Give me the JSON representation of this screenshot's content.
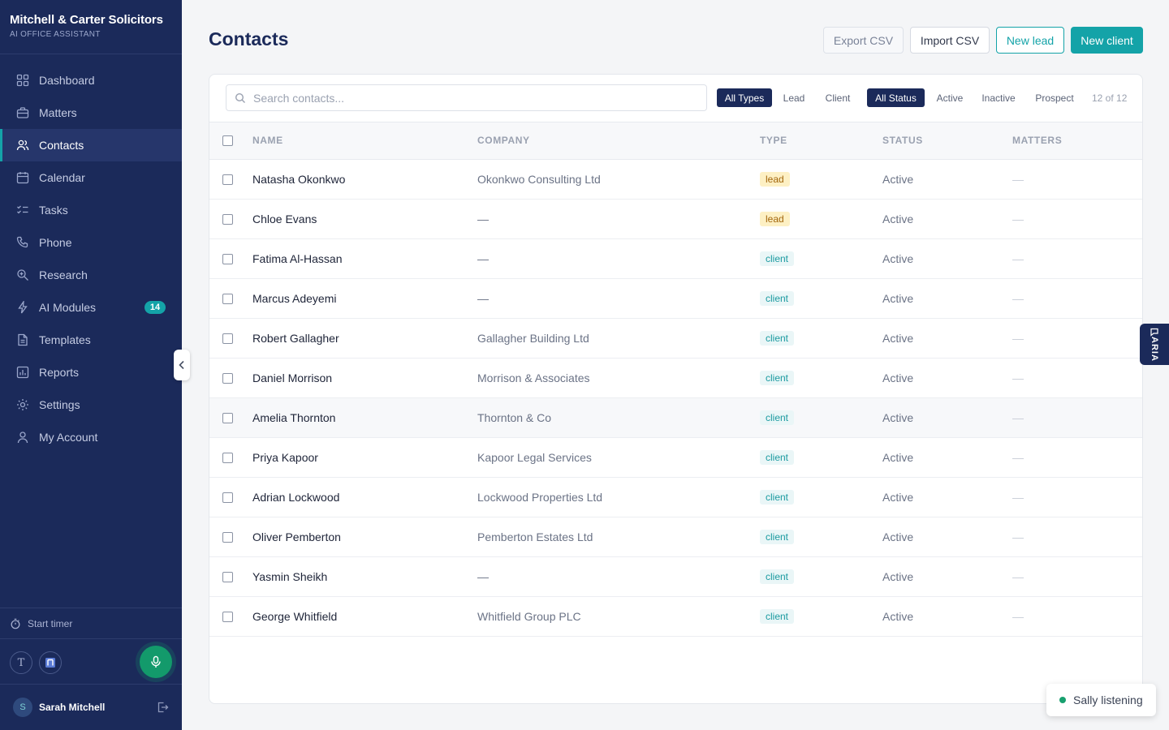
{
  "brand": {
    "name": "Mitchell & Carter Solicitors",
    "subtitle": "AI OFFICE ASSISTANT"
  },
  "sidebar": {
    "items": [
      {
        "label": "Dashboard",
        "icon": "dashboard-icon"
      },
      {
        "label": "Matters",
        "icon": "briefcase-icon"
      },
      {
        "label": "Contacts",
        "icon": "users-icon",
        "active": true
      },
      {
        "label": "Calendar",
        "icon": "calendar-icon"
      },
      {
        "label": "Tasks",
        "icon": "tasks-icon"
      },
      {
        "label": "Phone",
        "icon": "phone-icon"
      },
      {
        "label": "Research",
        "icon": "research-icon"
      },
      {
        "label": "AI Modules",
        "icon": "bolt-icon",
        "badge": "14"
      },
      {
        "label": "Templates",
        "icon": "document-icon"
      },
      {
        "label": "Reports",
        "icon": "chart-icon"
      },
      {
        "label": "Settings",
        "icon": "gear-icon"
      },
      {
        "label": "My Account",
        "icon": "user-icon"
      }
    ],
    "timer_label": "Start timer",
    "tool_t_label": "T",
    "user": {
      "initial": "S",
      "name": "Sarah Mitchell"
    }
  },
  "page": {
    "title": "Contacts"
  },
  "actions": {
    "export": "Export CSV",
    "import": "Import CSV",
    "new_lead": "New lead",
    "new_client": "New client"
  },
  "filters": {
    "search_placeholder": "Search contacts...",
    "types": [
      "All Types",
      "Lead",
      "Client"
    ],
    "statuses": [
      "All Status",
      "Active",
      "Inactive",
      "Prospect"
    ],
    "selected_type": "All Types",
    "selected_status": "All Status",
    "count": "12 of 12"
  },
  "table": {
    "headers": {
      "name": "NAME",
      "company": "COMPANY",
      "type": "TYPE",
      "status": "STATUS",
      "matters": "MATTERS"
    },
    "rows": [
      {
        "name": "Natasha Okonkwo",
        "company": "Okonkwo Consulting Ltd",
        "type": "lead",
        "status": "Active",
        "matters": "—"
      },
      {
        "name": "Chloe Evans",
        "company": "—",
        "type": "lead",
        "status": "Active",
        "matters": "—"
      },
      {
        "name": "Fatima Al-Hassan",
        "company": "—",
        "type": "client",
        "status": "Active",
        "matters": "—"
      },
      {
        "name": "Marcus Adeyemi",
        "company": "—",
        "type": "client",
        "status": "Active",
        "matters": "—"
      },
      {
        "name": "Robert Gallagher",
        "company": "Gallagher Building Ltd",
        "type": "client",
        "status": "Active",
        "matters": "—"
      },
      {
        "name": "Daniel Morrison",
        "company": "Morrison & Associates",
        "type": "client",
        "status": "Active",
        "matters": "—"
      },
      {
        "name": "Amelia Thornton",
        "company": "Thornton & Co",
        "type": "client",
        "status": "Active",
        "matters": "—",
        "hover": true
      },
      {
        "name": "Priya Kapoor",
        "company": "Kapoor Legal Services",
        "type": "client",
        "status": "Active",
        "matters": "—"
      },
      {
        "name": "Adrian Lockwood",
        "company": "Lockwood Properties Ltd",
        "type": "client",
        "status": "Active",
        "matters": "—"
      },
      {
        "name": "Oliver Pemberton",
        "company": "Pemberton Estates Ltd",
        "type": "client",
        "status": "Active",
        "matters": "—"
      },
      {
        "name": "Yasmin Sheikh",
        "company": "—",
        "type": "client",
        "status": "Active",
        "matters": "—"
      },
      {
        "name": "George Whitfield",
        "company": "Whitfield Group PLC",
        "type": "client",
        "status": "Active",
        "matters": "—"
      }
    ]
  },
  "aria_tab": {
    "label": "ARIA"
  },
  "assistant_status": {
    "label": "Sally listening"
  },
  "colors": {
    "sidebar_bg": "#1b2a5a",
    "accent_teal": "#14a3a8",
    "lead_badge_bg": "#fdf0c4",
    "client_badge_bg": "#eaf6f7",
    "mic_green": "#139a6b"
  }
}
